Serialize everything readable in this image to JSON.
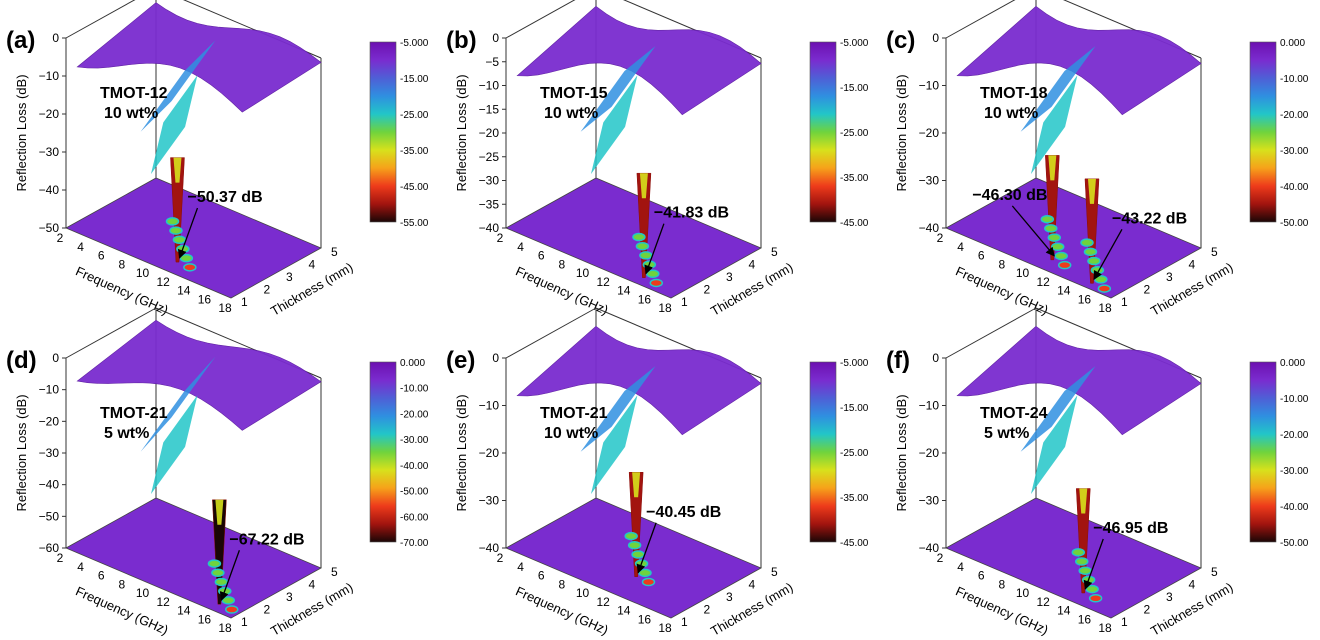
{
  "figure": {
    "panels": [
      {
        "letter": "(a)",
        "sample": "TMOT-12",
        "loading": "10 wt%",
        "annotations": [
          "−50.37 dB"
        ],
        "ylabel": "Reflection Loss (dB)",
        "xlabel": "Frequency (GHz)",
        "zlabel": "Thickness (mm)",
        "y_ticks": [
          "0",
          "−10",
          "−20",
          "−30",
          "−40",
          "−50"
        ],
        "colorbar_ticks": [
          "-5.000",
          "-15.00",
          "-25.00",
          "-35.00",
          "-45.00",
          "-55.00"
        ]
      },
      {
        "letter": "(b)",
        "sample": "TMOT-15",
        "loading": "10 wt%",
        "annotations": [
          "−41.83 dB"
        ],
        "ylabel": "Reflection Loss (dB)",
        "xlabel": "Frequency (GHz)",
        "zlabel": "Thickness (mm)",
        "y_ticks": [
          "0",
          "−5",
          "−10",
          "−15",
          "−20",
          "−25",
          "−30",
          "−35",
          "−40"
        ],
        "colorbar_ticks": [
          "-5.000",
          "-15.00",
          "-25.00",
          "-35.00",
          "-45.00"
        ]
      },
      {
        "letter": "(c)",
        "sample": "TMOT-18",
        "loading": "10 wt%",
        "annotations": [
          "−46.30 dB",
          "−43.22 dB"
        ],
        "ylabel": "Reflection Loss (dB)",
        "xlabel": "Frequency (GHz)",
        "zlabel": "Thickness (mm)",
        "y_ticks": [
          "0",
          "−10",
          "−20",
          "−30",
          "−40"
        ],
        "colorbar_ticks": [
          "0.000",
          "-10.00",
          "-20.00",
          "-30.00",
          "-40.00",
          "-50.00"
        ]
      },
      {
        "letter": "(d)",
        "sample": "TMOT-21",
        "loading": "5 wt%",
        "annotations": [
          "−67.22 dB"
        ],
        "ylabel": "Reflection Loss (dB)",
        "xlabel": "Frequency (GHz)",
        "zlabel": "Thickness (mm)",
        "y_ticks": [
          "0",
          "−10",
          "−20",
          "−30",
          "−40",
          "−50",
          "−60"
        ],
        "colorbar_ticks": [
          "0.000",
          "-10.00",
          "-20.00",
          "-30.00",
          "-40.00",
          "-50.00",
          "-60.00",
          "-70.00"
        ]
      },
      {
        "letter": "(e)",
        "sample": "TMOT-21",
        "loading": "10 wt%",
        "annotations": [
          "−40.45 dB"
        ],
        "ylabel": "Reflection Loss (dB)",
        "xlabel": "Frequency (GHz)",
        "zlabel": "Thickness (mm)",
        "y_ticks": [
          "0",
          "−10",
          "−20",
          "−30",
          "−40"
        ],
        "colorbar_ticks": [
          "-5.000",
          "-15.00",
          "-25.00",
          "-35.00",
          "-45.00"
        ]
      },
      {
        "letter": "(f)",
        "sample": "TMOT-24",
        "loading": "5 wt%",
        "annotations": [
          "−46.95 dB"
        ],
        "ylabel": "Reflection Loss (dB)",
        "xlabel": "Frequency (GHz)",
        "zlabel": "Thickness (mm)",
        "y_ticks": [
          "0",
          "−10",
          "−20",
          "−30",
          "−40"
        ],
        "colorbar_ticks": [
          "0.000",
          "-10.00",
          "-20.00",
          "-30.00",
          "-40.00",
          "-50.00"
        ]
      }
    ],
    "freq_ticks": [
      "2",
      "4",
      "6",
      "8",
      "10",
      "12",
      "14",
      "16",
      "18"
    ],
    "thick_ticks": [
      "1",
      "2",
      "3",
      "4",
      "5"
    ]
  },
  "colorscale": [
    "#6c10b0",
    "#7a2ccf",
    "#4f5fd6",
    "#2f8fe0",
    "#22c6c8",
    "#6fd33d",
    "#d7e11c",
    "#f6a21a",
    "#ee3b1b",
    "#a2140f",
    "#1a0606"
  ],
  "chart_data": [
    {
      "type": "surface",
      "title": "TMOT-12 10 wt%",
      "xlabel": "Frequency (GHz)",
      "ylabel": "Reflection Loss (dB)",
      "zlabel": "Thickness (mm)",
      "x_range": [
        2,
        18
      ],
      "z_range": [
        1,
        5
      ],
      "y_range": [
        -50,
        0
      ],
      "color_range": [
        -55,
        0
      ],
      "minimum": {
        "value": -50.37,
        "unit": "dB",
        "frequency": 11.5,
        "thickness": 1.6
      }
    },
    {
      "type": "surface",
      "title": "TMOT-15 10 wt%",
      "xlabel": "Frequency (GHz)",
      "ylabel": "Reflection Loss (dB)",
      "zlabel": "Thickness (mm)",
      "x_range": [
        2,
        18
      ],
      "z_range": [
        1,
        5
      ],
      "y_range": [
        -40,
        0
      ],
      "color_range": [
        -45,
        0
      ],
      "minimum": {
        "value": -41.83,
        "unit": "dB",
        "frequency": 14.5,
        "thickness": 1.4
      }
    },
    {
      "type": "surface",
      "title": "TMOT-18 10 wt%",
      "xlabel": "Frequency (GHz)",
      "ylabel": "Reflection Loss (dB)",
      "zlabel": "Thickness (mm)",
      "x_range": [
        2,
        18
      ],
      "z_range": [
        1,
        5
      ],
      "y_range": [
        -40,
        0
      ],
      "color_range": [
        -50,
        0
      ],
      "minima": [
        {
          "value": -46.3,
          "unit": "dB",
          "frequency": 11.0,
          "thickness": 1.6
        },
        {
          "value": -43.22,
          "unit": "dB",
          "frequency": 15.5,
          "thickness": 1.3
        }
      ]
    },
    {
      "type": "surface",
      "title": "TMOT-21 5 wt%",
      "xlabel": "Frequency (GHz)",
      "ylabel": "Reflection Loss (dB)",
      "zlabel": "Thickness (mm)",
      "x_range": [
        2,
        18
      ],
      "z_range": [
        1,
        5
      ],
      "y_range": [
        -60,
        0
      ],
      "color_range": [
        -70,
        0
      ],
      "minimum": {
        "value": -67.22,
        "unit": "dB",
        "frequency": 16.0,
        "thickness": 1.4
      }
    },
    {
      "type": "surface",
      "title": "TMOT-21 10 wt%",
      "xlabel": "Frequency (GHz)",
      "ylabel": "Reflection Loss (dB)",
      "zlabel": "Thickness (mm)",
      "x_range": [
        2,
        18
      ],
      "z_range": [
        1,
        5
      ],
      "y_range": [
        -40,
        0
      ],
      "color_range": [
        -45,
        0
      ],
      "minimum": {
        "value": -40.45,
        "unit": "dB",
        "frequency": 12.0,
        "thickness": 2.2
      }
    },
    {
      "type": "surface",
      "title": "TMOT-24 5 wt%",
      "xlabel": "Frequency (GHz)",
      "ylabel": "Reflection Loss (dB)",
      "zlabel": "Thickness (mm)",
      "x_range": [
        2,
        18
      ],
      "z_range": [
        1,
        5
      ],
      "y_range": [
        -40,
        0
      ],
      "color_range": [
        -50,
        0
      ],
      "minimum": {
        "value": -46.95,
        "unit": "dB",
        "frequency": 14.0,
        "thickness": 1.6
      }
    }
  ]
}
